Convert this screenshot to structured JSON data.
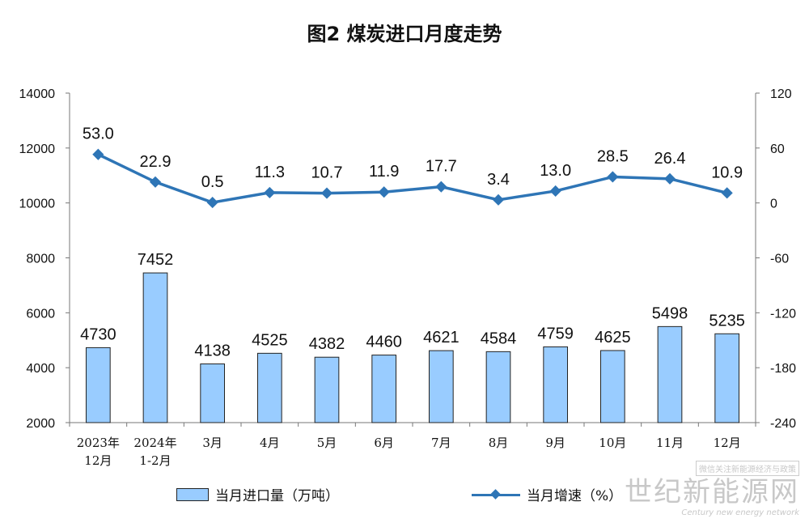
{
  "title": "图2  煤炭进口月度走势",
  "chart_data": {
    "type": "bar",
    "title": "图2  煤炭进口月度走势",
    "categories": [
      [
        "2023年",
        "12月"
      ],
      [
        "2024年",
        "1-2月"
      ],
      [
        "3月"
      ],
      [
        "4月"
      ],
      [
        "5月"
      ],
      [
        "6月"
      ],
      [
        "7月"
      ],
      [
        "8月"
      ],
      [
        "9月"
      ],
      [
        "10月"
      ],
      [
        "11月"
      ],
      [
        "12月"
      ]
    ],
    "series": [
      {
        "name": "当月进口量（万吨）",
        "type": "bar",
        "axis": "left",
        "values": [
          4730,
          7452,
          4138,
          4525,
          4382,
          4460,
          4621,
          4584,
          4759,
          4625,
          5498,
          5235
        ],
        "labels": [
          "4730",
          "7452",
          "4138",
          "4525",
          "4382",
          "4460",
          "4621",
          "4584",
          "4759",
          "4625",
          "5498",
          "5235"
        ],
        "color": "#99CCFF"
      },
      {
        "name": "当月增速（%）",
        "type": "line",
        "axis": "right",
        "values": [
          53.0,
          22.9,
          0.5,
          11.3,
          10.7,
          11.9,
          17.7,
          3.4,
          13.0,
          28.5,
          26.4,
          10.9
        ],
        "labels": [
          "53.0",
          "22.9",
          "0.5",
          "11.3",
          "10.7",
          "11.9",
          "17.7",
          "3.4",
          "13.0",
          "28.5",
          "26.4",
          "10.9"
        ],
        "color": "#2E75B6"
      }
    ],
    "y_left": {
      "min": 2000,
      "max": 14000,
      "ticks": [
        "14000",
        "12000",
        "10000",
        "8000",
        "6000",
        "4000",
        "2000"
      ],
      "tick_values": [
        14000,
        12000,
        10000,
        8000,
        6000,
        4000,
        2000
      ]
    },
    "y_right": {
      "min": -240,
      "max": 120,
      "ticks": [
        "120",
        "60",
        "0",
        "-60",
        "-120",
        "-180",
        "-240"
      ],
      "tick_values": [
        120,
        60,
        0,
        -60,
        -120,
        -180,
        -240
      ]
    },
    "grid": false,
    "legend": "bottom"
  },
  "legend": {
    "bar": "当月进口量（万吨）",
    "line": "当月增速（%）"
  },
  "watermark": {
    "small": "微信关注新能源经济与政策",
    "big": "世纪新能源网",
    "en": "Century new energy network"
  }
}
